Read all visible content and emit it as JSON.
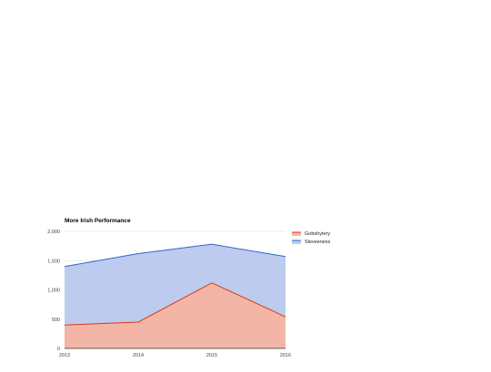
{
  "chart_data": {
    "type": "area",
    "stacked": true,
    "title": "More Irish Performance",
    "x": [
      "2013",
      "2014",
      "2015",
      "2016"
    ],
    "series": [
      {
        "name": "Gobshytery",
        "values": [
          400,
          450,
          1120,
          540
        ],
        "color": "#dc3912",
        "fill": "#f3b6a6"
      },
      {
        "name": "Sleveeness",
        "values": [
          1000,
          1170,
          660,
          1030
        ],
        "color": "#3366cc",
        "fill": "#bccbee"
      }
    ],
    "yticks": [
      0,
      500,
      1000,
      1500,
      2000
    ],
    "ytick_labels": [
      "0",
      "500",
      "1,000",
      "1,500",
      "2,000"
    ],
    "ylim": [
      0,
      2000
    ],
    "grid": true,
    "legend": "right",
    "xlabel": "",
    "ylabel": ""
  }
}
